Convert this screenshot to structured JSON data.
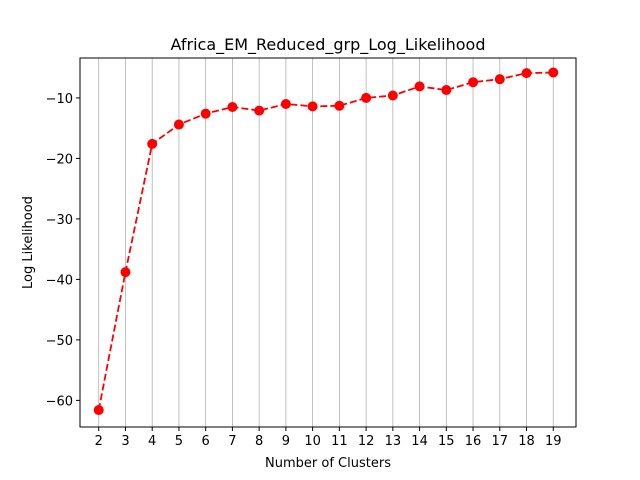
{
  "chart_data": {
    "type": "line",
    "title": "Africa_EM_Reduced_grp_Log_Likelihood",
    "xlabel": "Number of Clusters",
    "ylabel": "Log Likelihood",
    "x": [
      2,
      3,
      4,
      5,
      6,
      7,
      8,
      9,
      10,
      11,
      12,
      13,
      14,
      15,
      16,
      17,
      18,
      19
    ],
    "series": [
      {
        "values": [
          -61.6,
          -38.8,
          -17.6,
          -14.4,
          -12.6,
          -11.5,
          -12.1,
          -11.0,
          -11.4,
          -11.3,
          -10.0,
          -9.6,
          -8.1,
          -8.7,
          -7.4,
          -6.9,
          -5.9,
          -5.8
        ],
        "color": "#ff0000",
        "linestyle": "dashed",
        "marker": "circle"
      }
    ],
    "xticks": [
      2,
      3,
      4,
      5,
      6,
      7,
      8,
      9,
      10,
      11,
      12,
      13,
      14,
      15,
      16,
      17,
      18,
      19
    ],
    "yticks": [
      -60,
      -50,
      -40,
      -30,
      -20,
      -10
    ],
    "xlim": [
      1.3,
      19.85
    ],
    "ylim": [
      -64.4,
      -3.4
    ],
    "grid": "vertical"
  }
}
